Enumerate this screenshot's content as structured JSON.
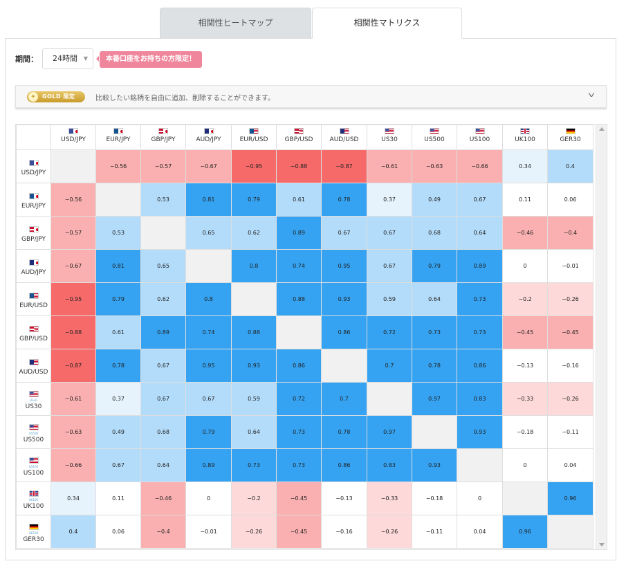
{
  "tabs": {
    "heatmap": "相関性ヒートマップ",
    "matrix": "相関性マトリクス"
  },
  "period": {
    "label": "期間：",
    "selected": "24時間"
  },
  "promo_badge": "本番口座をお持ちの方限定！",
  "gold": {
    "pill": "GOLD 限定",
    "description": "比較したい銘柄を自由に追加、削除することができます。"
  },
  "instruments": [
    {
      "label": "USD/JPY",
      "icon": "usd-jpy-flag-icon",
      "flag": "f-usd-jpy",
      "sub": ""
    },
    {
      "label": "EUR/JPY",
      "icon": "eur-jpy-flag-icon",
      "flag": "f-eur-jpy",
      "sub": ""
    },
    {
      "label": "GBP/JPY",
      "icon": "gbp-jpy-flag-icon",
      "flag": "f-gbp-jpy",
      "sub": ""
    },
    {
      "label": "AUD/JPY",
      "icon": "aud-jpy-flag-icon",
      "flag": "f-aud-jpy",
      "sub": ""
    },
    {
      "label": "EUR/USD",
      "icon": "eur-usd-flag-icon",
      "flag": "f-eur-usd",
      "sub": ""
    },
    {
      "label": "GBP/USD",
      "icon": "gbp-usd-flag-icon",
      "flag": "f-gbp-usd",
      "sub": ""
    },
    {
      "label": "AUD/USD",
      "icon": "aud-usd-flag-icon",
      "flag": "f-aud-usd",
      "sub": ""
    },
    {
      "label": "US30",
      "icon": "us-flag-icon",
      "flag": "f-us",
      "sub": "US30"
    },
    {
      "label": "US500",
      "icon": "us-flag-icon",
      "flag": "f-us",
      "sub": "US500"
    },
    {
      "label": "US100",
      "icon": "us-flag-icon",
      "flag": "f-us",
      "sub": "US100"
    },
    {
      "label": "UK100",
      "icon": "uk-flag-icon",
      "flag": "f-uk",
      "sub": "UK100"
    },
    {
      "label": "GER30",
      "icon": "de-flag-icon",
      "flag": "f-de",
      "sub": "GER30"
    }
  ],
  "matrix": [
    [
      "",
      "-0.56",
      "-0.57",
      "-0.67",
      "-0.95",
      "-0.88",
      "-0.87",
      "-0.61",
      "-0.63",
      "-0.66",
      "0.34",
      "0.4"
    ],
    [
      "-0.56",
      "",
      "0.53",
      "0.81",
      "0.79",
      "0.61",
      "0.78",
      "0.37",
      "0.49",
      "0.67",
      "0.11",
      "0.06"
    ],
    [
      "-0.57",
      "0.53",
      "",
      "0.65",
      "0.62",
      "0.89",
      "0.67",
      "0.67",
      "0.68",
      "0.64",
      "-0.46",
      "-0.4"
    ],
    [
      "-0.67",
      "0.81",
      "0.65",
      "",
      "0.8",
      "0.74",
      "0.95",
      "0.67",
      "0.79",
      "0.89",
      "0",
      "-0.01"
    ],
    [
      "-0.95",
      "0.79",
      "0.62",
      "0.8",
      "",
      "0.88",
      "0.93",
      "0.59",
      "0.64",
      "0.73",
      "-0.2",
      "-0.26"
    ],
    [
      "-0.88",
      "0.61",
      "0.89",
      "0.74",
      "0.88",
      "",
      "0.86",
      "0.72",
      "0.73",
      "0.73",
      "-0.45",
      "-0.45"
    ],
    [
      "-0.87",
      "0.78",
      "0.67",
      "0.95",
      "0.93",
      "0.86",
      "",
      "0.7",
      "0.78",
      "0.86",
      "-0.13",
      "-0.16"
    ],
    [
      "-0.61",
      "0.37",
      "0.67",
      "0.67",
      "0.59",
      "0.72",
      "0.7",
      "",
      "0.97",
      "0.83",
      "-0.33",
      "-0.26"
    ],
    [
      "-0.63",
      "0.49",
      "0.68",
      "0.79",
      "0.64",
      "0.73",
      "0.78",
      "0.97",
      "",
      "0.93",
      "-0.18",
      "-0.11"
    ],
    [
      "-0.66",
      "0.67",
      "0.64",
      "0.89",
      "0.73",
      "0.73",
      "0.86",
      "0.83",
      "0.93",
      "",
      "0",
      "0.04"
    ],
    [
      "0.34",
      "0.11",
      "-0.46",
      "0",
      "-0.2",
      "-0.45",
      "-0.13",
      "-0.33",
      "-0.18",
      "0",
      "",
      "0.96"
    ],
    [
      "0.4",
      "0.06",
      "-0.4",
      "-0.01",
      "-0.26",
      "-0.45",
      "-0.16",
      "-0.26",
      "-0.11",
      "0.04",
      "0.96",
      ""
    ]
  ],
  "colors": {
    "strong_positive": "#35a3f2",
    "positive": "#b3dcfa",
    "weak_positive": "#e6f3fd",
    "neutral": "#ffffff",
    "weak_negative": "#fdd9d9",
    "negative": "#fab0b0",
    "strong_negative": "#f76a6a",
    "diagonal": "#f1f1f1"
  }
}
